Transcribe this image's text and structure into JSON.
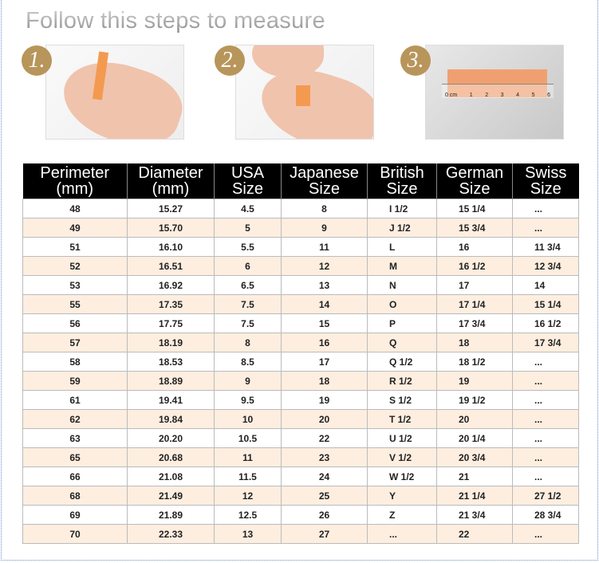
{
  "title": "Follow this steps to measure",
  "steps": [
    {
      "badge": "1.",
      "image": "hand-wrapping-paper-strip"
    },
    {
      "badge": "2.",
      "image": "hand-marking-paper-strip"
    },
    {
      "badge": "3.",
      "image": "paper-strip-on-ruler",
      "ruler_labels": [
        "0 cm",
        "1",
        "2",
        "3",
        "4",
        "5",
        "6"
      ]
    }
  ],
  "colors": {
    "header_bg": "#000000",
    "stripe": "#fdeee0",
    "badge": "#b8955a"
  },
  "table": {
    "headers": [
      [
        "Perimeter",
        "(mm)"
      ],
      [
        "Diameter",
        "(mm)"
      ],
      [
        "USA",
        "Size"
      ],
      [
        "Japanese",
        "Size"
      ],
      [
        "British",
        "Size"
      ],
      [
        "German",
        "Size"
      ],
      [
        "Swiss",
        "Size"
      ]
    ],
    "rows": [
      [
        "48",
        "15.27",
        "4.5",
        "8",
        "I 1/2",
        "15 1/4",
        "..."
      ],
      [
        "49",
        "15.70",
        "5",
        "9",
        "J 1/2",
        "15 3/4",
        "..."
      ],
      [
        "51",
        "16.10",
        "5.5",
        "11",
        "L",
        "16",
        "11 3/4"
      ],
      [
        "52",
        "16.51",
        "6",
        "12",
        "M",
        "16 1/2",
        "12 3/4"
      ],
      [
        "53",
        "16.92",
        "6.5",
        "13",
        "N",
        "17",
        "14"
      ],
      [
        "55",
        "17.35",
        "7.5",
        "14",
        "O",
        "17 1/4",
        "15 1/4"
      ],
      [
        "56",
        "17.75",
        "7.5",
        "15",
        "P",
        "17 3/4",
        "16 1/2"
      ],
      [
        "57",
        "18.19",
        "8",
        "16",
        "Q",
        "18",
        "17 3/4"
      ],
      [
        "58",
        "18.53",
        "8.5",
        "17",
        "Q 1/2",
        "18 1/2",
        "..."
      ],
      [
        "59",
        "18.89",
        "9",
        "18",
        "R 1/2",
        "19",
        "..."
      ],
      [
        "61",
        "19.41",
        "9.5",
        "19",
        "S 1/2",
        "19 1/2",
        "..."
      ],
      [
        "62",
        "19.84",
        "10",
        "20",
        "T 1/2",
        "20",
        "..."
      ],
      [
        "63",
        "20.20",
        "10.5",
        "22",
        "U 1/2",
        "20 1/4",
        "..."
      ],
      [
        "65",
        "20.68",
        "11",
        "23",
        "V 1/2",
        "20 3/4",
        "..."
      ],
      [
        "66",
        "21.08",
        "11.5",
        "24",
        "W 1/2",
        "21",
        "..."
      ],
      [
        "68",
        "21.49",
        "12",
        "25",
        "Y",
        "21 1/4",
        "27 1/2"
      ],
      [
        "69",
        "21.89",
        "12.5",
        "26",
        "Z",
        "21 3/4",
        "28 3/4"
      ],
      [
        "70",
        "22.33",
        "13",
        "27",
        "...",
        "22",
        "..."
      ]
    ]
  }
}
